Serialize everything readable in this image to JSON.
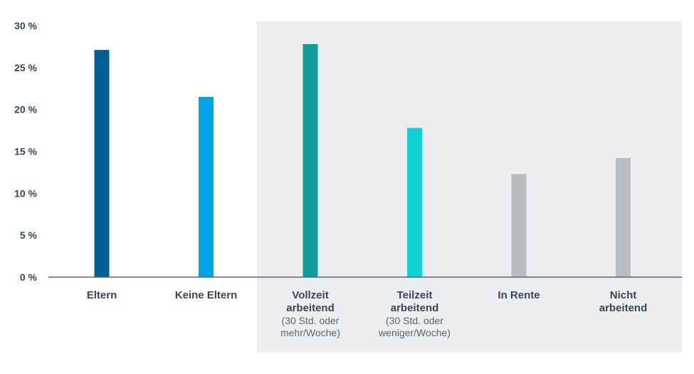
{
  "chart_data": {
    "type": "bar",
    "categories": [
      {
        "lines": [
          "Eltern"
        ],
        "sub": []
      },
      {
        "lines": [
          "Keine Eltern"
        ],
        "sub": []
      },
      {
        "lines": [
          "Vollzeit",
          "arbeitend"
        ],
        "sub": [
          "(30 Std. oder",
          "mehr/Woche)"
        ]
      },
      {
        "lines": [
          "Teilzeit",
          "arbeitend"
        ],
        "sub": [
          "(30 Std. oder",
          "weniger/Woche)"
        ]
      },
      {
        "lines": [
          "In Rente"
        ],
        "sub": []
      },
      {
        "lines": [
          "Nicht",
          "arbeitend"
        ],
        "sub": []
      }
    ],
    "values": [
      27.1,
      21.5,
      27.8,
      17.8,
      12.3,
      14.2
    ],
    "colors": [
      "#005f93",
      "#00a4e4",
      "#0f9c9c",
      "#0fd0d4",
      "#b9bdc2",
      "#b9bdc2"
    ],
    "ylim": [
      0,
      30
    ],
    "yticks": [
      "0 %",
      "5 %",
      "10 %",
      "15 %",
      "20 %",
      "25 %",
      "30 %"
    ],
    "ytick_values": [
      0,
      5,
      10,
      15,
      20,
      25,
      30
    ],
    "highlight_range": [
      2,
      5
    ],
    "highlight_color": "#eceef0",
    "axis_color": "#5a6478",
    "grid": false
  }
}
